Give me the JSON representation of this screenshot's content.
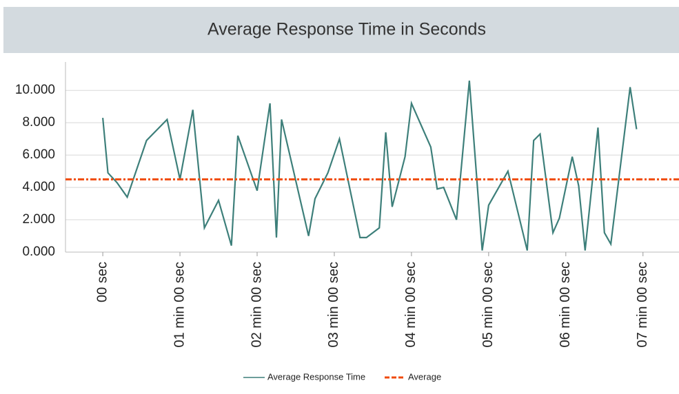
{
  "chart_data": {
    "type": "line",
    "title": "Average Response Time in Seconds",
    "x": [
      0,
      4,
      11,
      19,
      34,
      50,
      60,
      70,
      79,
      90,
      100,
      105,
      120,
      130,
      135,
      139,
      160,
      165,
      175,
      184,
      200,
      205,
      215,
      220,
      225,
      235,
      240,
      255,
      260,
      265,
      275,
      285,
      295,
      300,
      315,
      330,
      335,
      340,
      350,
      355,
      365,
      370,
      375,
      385,
      390,
      395,
      410,
      415
    ],
    "series": [
      {
        "name": "Average Response Time",
        "color": "#3d7f7a",
        "values": [
          8.3,
          4.9,
          4.3,
          3.4,
          6.9,
          8.2,
          4.5,
          8.8,
          1.5,
          3.2,
          0.4,
          7.2,
          3.8,
          9.2,
          0.9,
          8.2,
          1.0,
          3.3,
          4.9,
          7.0,
          0.9,
          0.9,
          1.5,
          7.4,
          2.8,
          5.9,
          9.2,
          6.5,
          3.9,
          4.0,
          2.0,
          10.6,
          0.1,
          2.9,
          5.0,
          0.1,
          6.9,
          7.3,
          1.2,
          2.1,
          5.9,
          4.1,
          0.1,
          7.7,
          1.2,
          0.5,
          10.2,
          7.6
        ]
      }
    ],
    "reference_line": {
      "name": "Average",
      "value": 4.5,
      "color": "#f04a0a"
    },
    "xlim": [
      -29,
      448
    ],
    "xticks": [
      {
        "value": 0,
        "label": "00 sec"
      },
      {
        "value": 60,
        "label": "01 min 00 sec"
      },
      {
        "value": 120,
        "label": "02 min 00 sec"
      },
      {
        "value": 180,
        "label": "03 min 00 sec"
      },
      {
        "value": 240,
        "label": "04 min 00 sec"
      },
      {
        "value": 300,
        "label": "05 min 00 sec"
      },
      {
        "value": 360,
        "label": "06 min 00 sec"
      },
      {
        "value": 420,
        "label": "07 min 00 sec"
      }
    ],
    "ylim": [
      0,
      11.5
    ],
    "yticks": [
      {
        "value": 0,
        "label": "0.000"
      },
      {
        "value": 2,
        "label": "2.000"
      },
      {
        "value": 4,
        "label": "4.000"
      },
      {
        "value": 6,
        "label": "6.000"
      },
      {
        "value": 8,
        "label": "8.000"
      },
      {
        "value": 10,
        "label": "10.000"
      }
    ],
    "grid": true
  }
}
